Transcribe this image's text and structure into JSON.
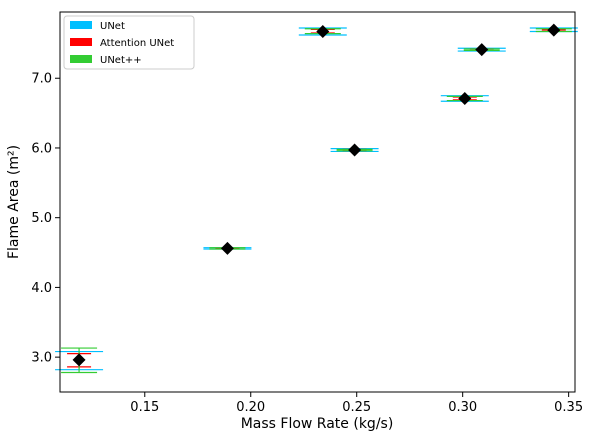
{
  "chart_data": {
    "type": "scatter",
    "xlabel": "Mass Flow Rate (kg/s)",
    "ylabel": "Flame Area (m²)",
    "xlim": [
      0.11,
      0.353
    ],
    "ylim": [
      2.5,
      7.95
    ],
    "xticks": [
      0.15,
      0.2,
      0.25,
      0.3,
      0.35
    ],
    "xtick_labels": [
      "0.15",
      "0.20",
      "0.25",
      "0.30",
      "0.35"
    ],
    "yticks": [
      3.0,
      4.0,
      5.0,
      6.0,
      7.0
    ],
    "ytick_labels": [
      "3.0",
      "4.0",
      "5.0",
      "6.0",
      "7.0"
    ],
    "legend_position": "top-left",
    "series": [
      {
        "name": "UNet",
        "color": "#00bfff",
        "points": [
          {
            "x": 0.119,
            "y": 2.96,
            "low": 2.82,
            "high": 3.08
          },
          {
            "x": 0.189,
            "y": 4.56,
            "low": 4.55,
            "high": 4.57
          },
          {
            "x": 0.234,
            "y": 7.67,
            "low": 7.62,
            "high": 7.72
          },
          {
            "x": 0.249,
            "y": 5.97,
            "low": 5.95,
            "high": 5.99
          },
          {
            "x": 0.301,
            "y": 6.71,
            "low": 6.67,
            "high": 6.75
          },
          {
            "x": 0.309,
            "y": 7.41,
            "low": 7.39,
            "high": 7.43
          },
          {
            "x": 0.343,
            "y": 7.69,
            "low": 7.67,
            "high": 7.72
          }
        ]
      },
      {
        "name": "Attention UNet",
        "color": "#ff0000",
        "points": [
          {
            "x": 0.119,
            "y": 2.96,
            "low": 2.86,
            "high": 3.05
          },
          {
            "x": 0.189,
            "y": 4.56,
            "low": 4.555,
            "high": 4.565
          },
          {
            "x": 0.234,
            "y": 7.67,
            "low": 7.65,
            "high": 7.7
          },
          {
            "x": 0.249,
            "y": 5.97,
            "low": 5.96,
            "high": 5.98
          },
          {
            "x": 0.301,
            "y": 6.71,
            "low": 6.69,
            "high": 6.73
          },
          {
            "x": 0.309,
            "y": 7.41,
            "low": 7.4,
            "high": 7.42
          },
          {
            "x": 0.343,
            "y": 7.69,
            "low": 7.68,
            "high": 7.7
          }
        ]
      },
      {
        "name": "UNet++",
        "color": "#33cc33",
        "points": [
          {
            "x": 0.119,
            "y": 2.96,
            "low": 2.78,
            "high": 3.13
          },
          {
            "x": 0.189,
            "y": 4.56,
            "low": 4.55,
            "high": 4.57
          },
          {
            "x": 0.234,
            "y": 7.67,
            "low": 7.64,
            "high": 7.71
          },
          {
            "x": 0.249,
            "y": 5.97,
            "low": 5.96,
            "high": 5.98
          },
          {
            "x": 0.301,
            "y": 6.71,
            "low": 6.68,
            "high": 6.74
          },
          {
            "x": 0.309,
            "y": 7.41,
            "low": 7.4,
            "high": 7.42
          },
          {
            "x": 0.343,
            "y": 7.69,
            "low": 7.67,
            "high": 7.71
          }
        ]
      }
    ],
    "mean_marker": {
      "color": "#000000",
      "shape": "diamond",
      "points": [
        {
          "x": 0.119,
          "y": 2.96
        },
        {
          "x": 0.189,
          "y": 4.56
        },
        {
          "x": 0.234,
          "y": 7.67
        },
        {
          "x": 0.249,
          "y": 5.97
        },
        {
          "x": 0.301,
          "y": 6.71
        },
        {
          "x": 0.309,
          "y": 7.41
        },
        {
          "x": 0.343,
          "y": 7.69
        }
      ]
    }
  }
}
